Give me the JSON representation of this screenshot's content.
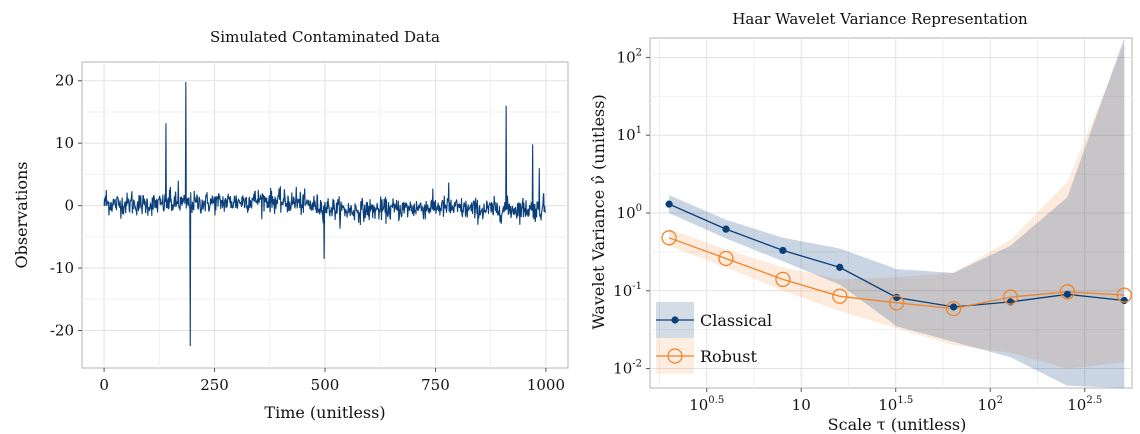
{
  "chart_data": [
    {
      "type": "line",
      "title": "Simulated Contaminated Data",
      "xlabel": "Time (unitless)",
      "ylabel": "Observations",
      "xlim": [
        -50,
        1050
      ],
      "ylim": [
        -26,
        23
      ],
      "x_ticks": [
        0,
        250,
        500,
        750,
        1000
      ],
      "y_ticks": [
        20,
        10,
        0,
        -10,
        -20
      ],
      "x_tick_labels": [
        "0",
        "250",
        "500",
        "750",
        "1000"
      ],
      "y_tick_labels": [
        "20",
        "10",
        "0",
        "-10",
        "-20"
      ],
      "grid": true,
      "n_points": 1000,
      "base_level": [
        {
          "x": 0,
          "y": 0.3
        },
        {
          "x": 100,
          "y": 0.2
        },
        {
          "x": 200,
          "y": 0.4
        },
        {
          "x": 300,
          "y": 0.6
        },
        {
          "x": 350,
          "y": 1.0
        },
        {
          "x": 450,
          "y": 0.3
        },
        {
          "x": 550,
          "y": -0.8
        },
        {
          "x": 650,
          "y": -0.6
        },
        {
          "x": 750,
          "y": -0.2
        },
        {
          "x": 850,
          "y": -0.7
        },
        {
          "x": 950,
          "y": -0.5
        },
        {
          "x": 1000,
          "y": -0.7
        }
      ],
      "outliers": [
        {
          "x": 5,
          "y": 2.5
        },
        {
          "x": 63,
          "y": 2.3
        },
        {
          "x": 140,
          "y": 13.2
        },
        {
          "x": 150,
          "y": 3.0
        },
        {
          "x": 168,
          "y": 4.0
        },
        {
          "x": 185,
          "y": 19.8
        },
        {
          "x": 195,
          "y": -22.5
        },
        {
          "x": 435,
          "y": 3.0
        },
        {
          "x": 498,
          "y": -8.5
        },
        {
          "x": 780,
          "y": 3.7
        },
        {
          "x": 910,
          "y": 16.0
        },
        {
          "x": 970,
          "y": 9.8
        },
        {
          "x": 985,
          "y": 6.0
        },
        {
          "x": 995,
          "y": 2.0
        }
      ],
      "series_color": "#0b3f7a"
    },
    {
      "type": "line",
      "title": "Haar Wavelet Variance Representation",
      "xlabel": "Scale τ (unitless)",
      "ylabel": "Wavelet Variance ν̂ (unitless)",
      "x_log": true,
      "y_log": true,
      "xlim_log10": [
        0.2,
        2.75
      ],
      "ylim_log10": [
        -2.25,
        2.25
      ],
      "x_tick_labels": [
        "10^0.5",
        "10",
        "10^1.5",
        "10^2",
        "10^2.5"
      ],
      "y_tick_labels": [
        "10^2",
        "10^1",
        "10^0",
        "10^-1",
        "10^-2"
      ],
      "grid": true,
      "legend_position": "bottom-left",
      "x": [
        2,
        4,
        8,
        16,
        32,
        64,
        128,
        256,
        512
      ],
      "series": [
        {
          "name": "Classical",
          "color": "#0b3f7a",
          "marker": "filled-circle",
          "values": [
            1.3,
            0.62,
            0.33,
            0.2,
            0.082,
            0.062,
            0.072,
            0.09,
            0.075
          ],
          "ci_lower": [
            1.0,
            0.47,
            0.24,
            0.12,
            0.035,
            0.022,
            0.014,
            0.006,
            0.003
          ],
          "ci_upper": [
            1.7,
            0.82,
            0.48,
            0.35,
            0.19,
            0.17,
            0.38,
            1.6,
            200
          ]
        },
        {
          "name": "Robust",
          "color": "#f0842b",
          "marker": "open-circle",
          "values": [
            0.48,
            0.26,
            0.14,
            0.085,
            0.07,
            0.059,
            0.083,
            0.097,
            0.088
          ],
          "ci_lower": [
            0.38,
            0.2,
            0.1,
            0.055,
            0.033,
            0.02,
            0.016,
            0.01,
            0.012
          ],
          "ci_upper": [
            0.62,
            0.34,
            0.2,
            0.14,
            0.15,
            0.17,
            0.45,
            2.5,
            150
          ]
        }
      ]
    }
  ]
}
